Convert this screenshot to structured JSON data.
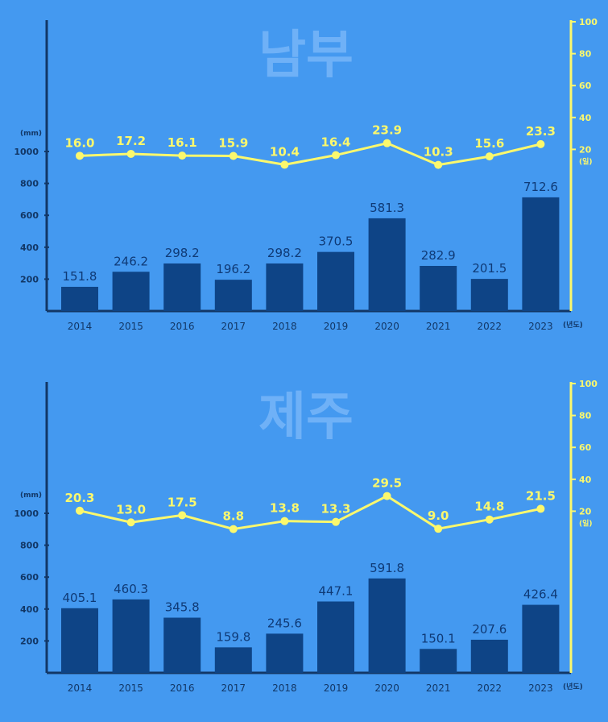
{
  "colors": {
    "background": "#4499f0",
    "bar": "#0e4486",
    "line": "#fbf86d",
    "title": "#6fb1f7",
    "axis": "#123766"
  },
  "chart_data": [
    {
      "type": "bar",
      "title": "남부",
      "categories": [
        "2014",
        "2015",
        "2016",
        "2017",
        "2018",
        "2019",
        "2020",
        "2021",
        "2022",
        "2023"
      ],
      "series": [
        {
          "type": "bar",
          "axis": "left",
          "values": [
            151.8,
            246.2,
            298.2,
            196.2,
            298.2,
            370.5,
            581.3,
            282.9,
            201.5,
            712.6
          ],
          "labels": [
            "151.8",
            "246.2",
            "298.2",
            "196.2",
            "298.2",
            "370.5",
            "581.3",
            "282.9",
            "201.5",
            "712.6"
          ]
        },
        {
          "type": "line",
          "axis": "right",
          "values": [
            16.0,
            17.2,
            16.1,
            15.9,
            10.4,
            16.4,
            23.9,
            10.3,
            15.6,
            23.3
          ],
          "labels": [
            "16.0",
            "17.2",
            "16.1",
            "15.9",
            "10.4",
            "16.4",
            "23.9",
            "10.3",
            "15.6",
            "23.3"
          ]
        }
      ],
      "left_axis": {
        "unit": "(mm)",
        "ticks": [
          "200",
          "400",
          "600",
          "800",
          "1000"
        ],
        "ylim": [
          0,
          1000
        ]
      },
      "right_axis": {
        "unit": "(일)",
        "ticks": [
          "20",
          "40",
          "60",
          "80",
          "100"
        ],
        "ylim": [
          0,
          100
        ]
      },
      "x_unit": "(년도)"
    },
    {
      "type": "bar",
      "title": "제주",
      "categories": [
        "2014",
        "2015",
        "2016",
        "2017",
        "2018",
        "2019",
        "2020",
        "2021",
        "2022",
        "2023"
      ],
      "series": [
        {
          "type": "bar",
          "axis": "left",
          "values": [
            405.1,
            460.3,
            345.8,
            159.8,
            245.6,
            447.1,
            591.8,
            150.1,
            207.6,
            426.4
          ],
          "labels": [
            "405.1",
            "460.3",
            "345.8",
            "159.8",
            "245.6",
            "447.1",
            "591.8",
            "150.1",
            "207.6",
            "426.4"
          ]
        },
        {
          "type": "line",
          "axis": "right",
          "values": [
            20.3,
            13.0,
            17.5,
            8.8,
            13.8,
            13.3,
            29.5,
            9.0,
            14.8,
            21.5
          ],
          "labels": [
            "20.3",
            "13.0",
            "17.5",
            "8.8",
            "13.8",
            "13.3",
            "29.5",
            "9.0",
            "14.8",
            "21.5"
          ]
        }
      ],
      "left_axis": {
        "unit": "(mm)",
        "ticks": [
          "200",
          "400",
          "600",
          "800",
          "1000"
        ],
        "ylim": [
          0,
          1000
        ]
      },
      "right_axis": {
        "unit": "(일)",
        "ticks": [
          "20",
          "40",
          "60",
          "80",
          "100"
        ],
        "ylim": [
          0,
          100
        ]
      },
      "x_unit": "(년도)"
    }
  ]
}
